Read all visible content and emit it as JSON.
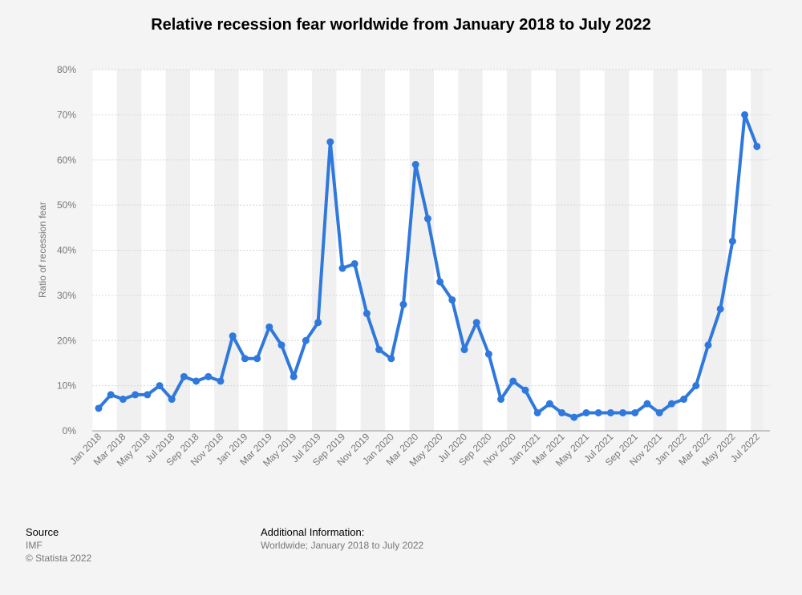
{
  "chart_data": {
    "type": "line",
    "title": "Relative recession fear worldwide from January 2018 to July 2022",
    "xlabel": "",
    "ylabel": "Ratio of recession fear",
    "ylim": [
      0,
      80
    ],
    "y_ticks": [
      0,
      10,
      20,
      30,
      40,
      50,
      60,
      70,
      80
    ],
    "y_tick_suffix": "%",
    "grid": true,
    "x_tick_labels": [
      "Jan 2018",
      "Mar 2018",
      "May 2018",
      "Jul 2018",
      "Sep 2018",
      "Nov 2018",
      "Jan 2019",
      "Mar 2019",
      "May 2019",
      "Jul 2019",
      "Sep 2019",
      "Nov 2019",
      "Jan 2020",
      "Mar 2020",
      "May 2020",
      "Jul 2020",
      "Sep 2020",
      "Nov 2020",
      "Jan 2021",
      "Mar 2021",
      "May 2021",
      "Jul 2021",
      "Sep 2021",
      "Nov 2021",
      "Jan 2022",
      "Mar 2022",
      "May 2022",
      "Jul 2022"
    ],
    "series": [
      {
        "name": "Ratio of recession fear",
        "color": "#2f78dc",
        "values": [
          5,
          8,
          7,
          8,
          8,
          10,
          7,
          12,
          11,
          12,
          11,
          21,
          16,
          16,
          23,
          19,
          12,
          20,
          24,
          64,
          36,
          37,
          26,
          18,
          16,
          28,
          59,
          47,
          33,
          29,
          18,
          24,
          17,
          7,
          11,
          9,
          4,
          6,
          4,
          3,
          4,
          4,
          4,
          4,
          4,
          6,
          4,
          6,
          7,
          10,
          19,
          27,
          42,
          70,
          63
        ]
      }
    ]
  },
  "footer": {
    "source_heading": "Source",
    "source_name": "IMF",
    "copyright": "© Statista 2022",
    "additional_heading": "Additional Information:",
    "additional_text": "Worldwide; January 2018 to July 2022"
  }
}
